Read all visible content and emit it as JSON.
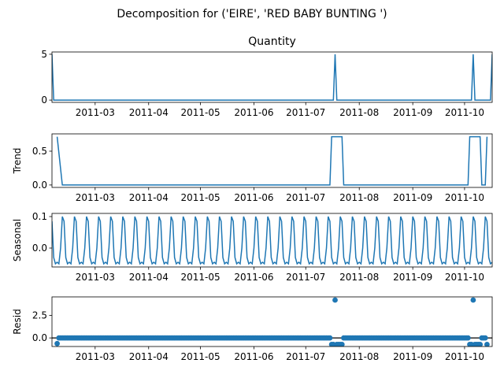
{
  "figure": {
    "suptitle": "Decomposition for ('EIRE', 'RED BABY BUNTING ')"
  },
  "colors": {
    "series": "#1f77b4",
    "axis": "#000000",
    "background": "#ffffff"
  },
  "chart_data": [
    {
      "type": "line",
      "title": "Quantity",
      "ylabel": "",
      "x_range": [
        "2011-02-04",
        "2011-10-17"
      ],
      "ylim": [
        -0.25,
        5.25
      ],
      "yticks": [
        {
          "value": 0,
          "label": "0"
        },
        {
          "value": 5,
          "label": "5"
        }
      ],
      "xticks": [
        {
          "date": "2011-03-01",
          "label": "2011-03"
        },
        {
          "date": "2011-04-01",
          "label": "2011-04"
        },
        {
          "date": "2011-05-01",
          "label": "2011-05"
        },
        {
          "date": "2011-06-01",
          "label": "2011-06"
        },
        {
          "date": "2011-07-01",
          "label": "2011-07"
        },
        {
          "date": "2011-08-01",
          "label": "2011-08"
        },
        {
          "date": "2011-09-01",
          "label": "2011-09"
        },
        {
          "date": "2011-10-01",
          "label": "2011-10"
        }
      ],
      "series": [
        {
          "points": [
            [
              "2011-02-04",
              5
            ],
            [
              "2011-02-05",
              0
            ],
            [
              "2011-07-17",
              0
            ],
            [
              "2011-07-18",
              5
            ],
            [
              "2011-07-19",
              0
            ],
            [
              "2011-10-05",
              0
            ],
            [
              "2011-10-06",
              5
            ],
            [
              "2011-10-07",
              0
            ],
            [
              "2011-10-16",
              0
            ],
            [
              "2011-10-17",
              5
            ]
          ]
        }
      ]
    },
    {
      "type": "line",
      "title": "",
      "ylabel": "Trend",
      "x_range": [
        "2011-02-04",
        "2011-10-17"
      ],
      "ylim": [
        -0.036,
        0.756
      ],
      "yticks": [
        {
          "value": 0.0,
          "label": "0.0"
        },
        {
          "value": 0.5,
          "label": "0.5"
        }
      ],
      "xticks": [
        {
          "date": "2011-03-01",
          "label": "2011-03"
        },
        {
          "date": "2011-04-01",
          "label": "2011-04"
        },
        {
          "date": "2011-05-01",
          "label": "2011-05"
        },
        {
          "date": "2011-06-01",
          "label": "2011-06"
        },
        {
          "date": "2011-07-01",
          "label": "2011-07"
        },
        {
          "date": "2011-08-01",
          "label": "2011-08"
        },
        {
          "date": "2011-09-01",
          "label": "2011-09"
        },
        {
          "date": "2011-10-01",
          "label": "2011-10"
        }
      ],
      "series": [
        {
          "points": [
            [
              "2011-02-07",
              0.714
            ],
            [
              "2011-02-10",
              0
            ],
            [
              "2011-07-15",
              0
            ],
            [
              "2011-07-16",
              0.714
            ],
            [
              "2011-07-22",
              0.714
            ],
            [
              "2011-07-23",
              0
            ],
            [
              "2011-10-03",
              0
            ],
            [
              "2011-10-04",
              0.714
            ],
            [
              "2011-10-10",
              0.714
            ],
            [
              "2011-10-11",
              0
            ],
            [
              "2011-10-13",
              0
            ],
            [
              "2011-10-14",
              0.714
            ]
          ]
        }
      ]
    },
    {
      "type": "line",
      "title": "",
      "ylabel": "Seasonal",
      "x_range": [
        "2011-02-04",
        "2011-10-17"
      ],
      "ylim": [
        -0.06,
        0.11
      ],
      "yticks": [
        {
          "value": 0.0,
          "label": "0.0"
        },
        {
          "value": 0.1,
          "label": "0.1"
        }
      ],
      "xticks": [
        {
          "date": "2011-03-01",
          "label": "2011-03"
        },
        {
          "date": "2011-04-01",
          "label": "2011-04"
        },
        {
          "date": "2011-05-01",
          "label": "2011-05"
        },
        {
          "date": "2011-06-01",
          "label": "2011-06"
        },
        {
          "date": "2011-07-01",
          "label": "2011-07"
        },
        {
          "date": "2011-08-01",
          "label": "2011-08"
        },
        {
          "date": "2011-09-01",
          "label": "2011-09"
        },
        {
          "date": "2011-10-01",
          "label": "2011-10"
        }
      ],
      "seasonal_pattern": [
        0.085,
        -0.03,
        -0.05,
        -0.045,
        -0.05,
        0.0,
        0.1
      ],
      "seasonal_start": "2011-02-04",
      "seasonal_end": "2011-10-17"
    },
    {
      "type": "scatter",
      "title": "",
      "ylabel": "Resid",
      "x_range": [
        "2011-02-04",
        "2011-10-17"
      ],
      "ylim": [
        -0.95,
        4.55
      ],
      "yticks": [
        {
          "value": 0.0,
          "label": "0.0"
        },
        {
          "value": 2.5,
          "label": "2.5"
        }
      ],
      "xticks": [
        {
          "date": "2011-03-01",
          "label": "2011-03"
        },
        {
          "date": "2011-04-01",
          "label": "2011-04"
        },
        {
          "date": "2011-05-01",
          "label": "2011-05"
        },
        {
          "date": "2011-06-01",
          "label": "2011-06"
        },
        {
          "date": "2011-07-01",
          "label": "2011-07"
        },
        {
          "date": "2011-08-01",
          "label": "2011-08"
        },
        {
          "date": "2011-09-01",
          "label": "2011-09"
        },
        {
          "date": "2011-10-01",
          "label": "2011-10"
        }
      ],
      "baseline": 0.0,
      "resid_start": "2011-02-07",
      "resid_end": "2011-10-14",
      "resid_default": 0.0,
      "resid_special": [
        [
          "2011-02-07",
          -0.62
        ],
        [
          "2011-07-16",
          -0.72
        ],
        [
          "2011-07-17",
          -0.72
        ],
        [
          "2011-07-18",
          4.2
        ],
        [
          "2011-07-19",
          -0.72
        ],
        [
          "2011-07-20",
          -0.72
        ],
        [
          "2011-07-21",
          -0.72
        ],
        [
          "2011-07-22",
          -0.72
        ],
        [
          "2011-10-04",
          -0.72
        ],
        [
          "2011-10-05",
          -0.72
        ],
        [
          "2011-10-06",
          4.2
        ],
        [
          "2011-10-07",
          -0.72
        ],
        [
          "2011-10-08",
          -0.72
        ],
        [
          "2011-10-09",
          -0.72
        ],
        [
          "2011-10-10",
          -0.72
        ],
        [
          "2011-10-14",
          -0.72
        ]
      ]
    }
  ]
}
